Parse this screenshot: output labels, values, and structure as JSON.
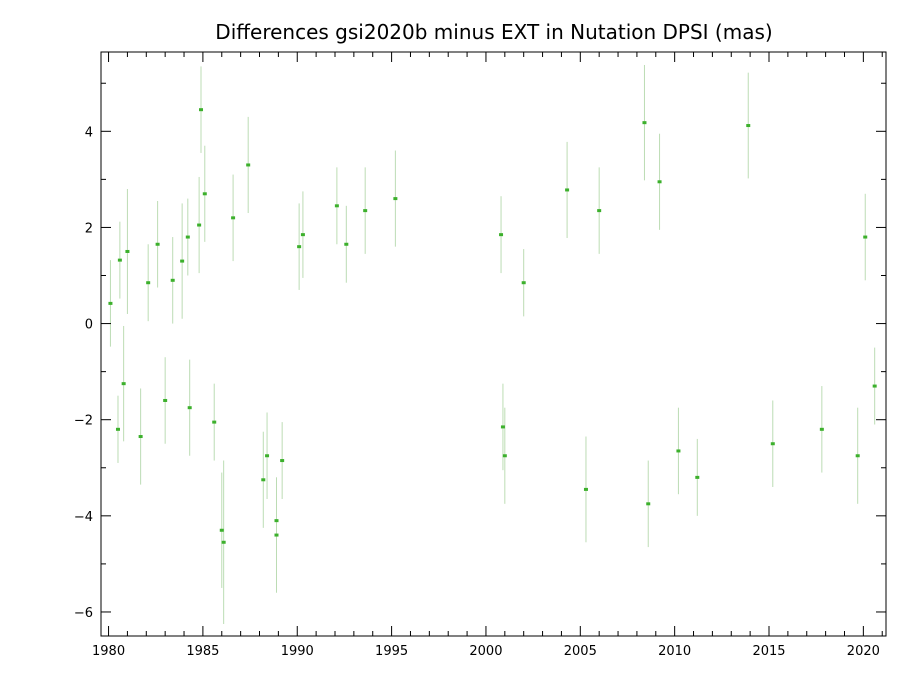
{
  "chart_data": {
    "type": "scatter",
    "title": "Differences gsi2020b minus EXT in Nutation DPSI (mas)",
    "xlabel": "",
    "ylabel": "",
    "xlim": [
      1979.6,
      2021.2
    ],
    "ylim": [
      -6.5,
      5.65
    ],
    "x_ticks": [
      1980,
      1985,
      1990,
      1995,
      2000,
      2005,
      2010,
      2015,
      2020
    ],
    "x_tick_labels": [
      "1980",
      "1985",
      "1990",
      "1995",
      "2000",
      "2005",
      "2010",
      "2015",
      "2020"
    ],
    "y_ticks": [
      -6,
      -4,
      -2,
      0,
      2,
      4
    ],
    "y_tick_labels": [
      "−6",
      "−4",
      "−2",
      "0",
      "2",
      "4"
    ],
    "grid": false,
    "legend": "none",
    "colors": {
      "points": "#3cb02c",
      "errorbars": "#bcdcb4",
      "frame": "#000000"
    },
    "series": [
      {
        "values": [
          {
            "x": 1980.1,
            "y": 0.42,
            "err": 0.9
          },
          {
            "x": 1980.5,
            "y": -2.2,
            "err": 0.7
          },
          {
            "x": 1980.6,
            "y": 1.32,
            "err": 0.8
          },
          {
            "x": 1980.8,
            "y": -1.25,
            "err": 1.2
          },
          {
            "x": 1981.0,
            "y": 1.5,
            "err": 1.3
          },
          {
            "x": 1981.7,
            "y": -2.35,
            "err": 1.0
          },
          {
            "x": 1982.1,
            "y": 0.85,
            "err": 0.8
          },
          {
            "x": 1982.6,
            "y": 1.65,
            "err": 0.9
          },
          {
            "x": 1983.0,
            "y": -1.6,
            "err": 0.9
          },
          {
            "x": 1983.4,
            "y": 0.9,
            "err": 0.9
          },
          {
            "x": 1983.9,
            "y": 1.3,
            "err": 1.2
          },
          {
            "x": 1984.2,
            "y": 1.8,
            "err": 0.8
          },
          {
            "x": 1984.3,
            "y": -1.75,
            "err": 1.0
          },
          {
            "x": 1984.8,
            "y": 2.05,
            "err": 1.0
          },
          {
            "x": 1984.9,
            "y": 4.45,
            "err": 0.9
          },
          {
            "x": 1985.1,
            "y": 2.7,
            "err": 1.0
          },
          {
            "x": 1985.6,
            "y": -2.05,
            "err": 0.8
          },
          {
            "x": 1986.0,
            "y": -4.3,
            "err": 1.2
          },
          {
            "x": 1986.1,
            "y": -4.55,
            "err": 1.7
          },
          {
            "x": 1986.6,
            "y": 2.2,
            "err": 0.9
          },
          {
            "x": 1987.4,
            "y": 3.3,
            "err": 1.0
          },
          {
            "x": 1988.2,
            "y": -3.25,
            "err": 1.0
          },
          {
            "x": 1988.4,
            "y": -2.75,
            "err": 0.9
          },
          {
            "x": 1988.9,
            "y": -4.1,
            "err": 0.9
          },
          {
            "x": 1988.9,
            "y": -4.4,
            "err": 1.2
          },
          {
            "x": 1989.2,
            "y": -2.85,
            "err": 0.8
          },
          {
            "x": 1990.1,
            "y": 1.6,
            "err": 0.9
          },
          {
            "x": 1990.3,
            "y": 1.85,
            "err": 0.9
          },
          {
            "x": 1992.1,
            "y": 2.45,
            "err": 0.8
          },
          {
            "x": 1992.6,
            "y": 1.65,
            "err": 0.8
          },
          {
            "x": 1993.6,
            "y": 2.35,
            "err": 0.9
          },
          {
            "x": 1995.2,
            "y": 2.6,
            "err": 1.0
          },
          {
            "x": 2000.8,
            "y": 1.85,
            "err": 0.8
          },
          {
            "x": 2000.9,
            "y": -2.15,
            "err": 0.9
          },
          {
            "x": 2001.0,
            "y": -2.75,
            "err": 1.0
          },
          {
            "x": 2002.0,
            "y": 0.85,
            "err": 0.7
          },
          {
            "x": 2004.3,
            "y": 2.78,
            "err": 1.0
          },
          {
            "x": 2005.3,
            "y": -3.45,
            "err": 1.1
          },
          {
            "x": 2006.0,
            "y": 2.35,
            "err": 0.9
          },
          {
            "x": 2008.4,
            "y": 4.18,
            "err": 1.2
          },
          {
            "x": 2008.6,
            "y": -3.75,
            "err": 0.9
          },
          {
            "x": 2009.2,
            "y": 2.95,
            "err": 1.0
          },
          {
            "x": 2010.2,
            "y": -2.65,
            "err": 0.9
          },
          {
            "x": 2011.2,
            "y": -3.2,
            "err": 0.8
          },
          {
            "x": 2013.9,
            "y": 4.12,
            "err": 1.1
          },
          {
            "x": 2015.2,
            "y": -2.5,
            "err": 0.9
          },
          {
            "x": 2017.8,
            "y": -2.2,
            "err": 0.9
          },
          {
            "x": 2019.7,
            "y": -2.75,
            "err": 1.0
          },
          {
            "x": 2020.1,
            "y": 1.8,
            "err": 0.9
          },
          {
            "x": 2020.6,
            "y": -1.3,
            "err": 0.8
          }
        ]
      }
    ]
  }
}
